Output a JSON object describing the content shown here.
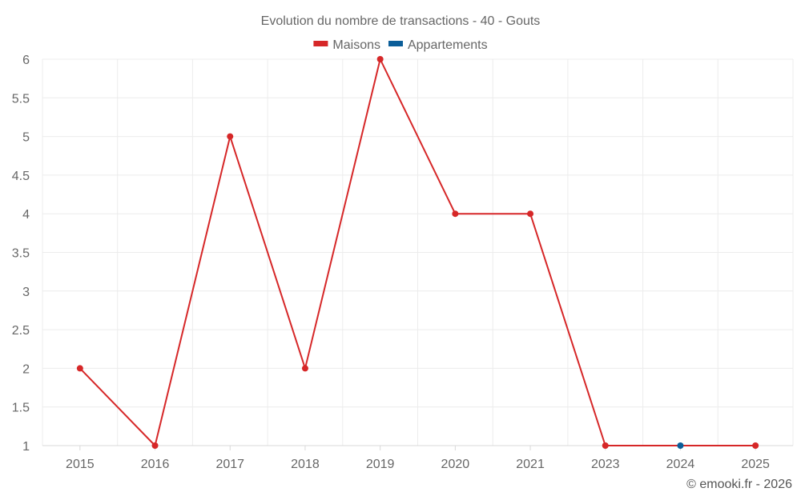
{
  "chart_data": {
    "type": "line",
    "title": "Evolution du nombre de transactions - 40 - Gouts",
    "categories": [
      "2015",
      "2016",
      "2017",
      "2018",
      "2019",
      "2020",
      "2021",
      "2023",
      "2024",
      "2025"
    ],
    "series": [
      {
        "name": "Maisons",
        "color": "#d62728",
        "values": [
          2,
          1,
          5,
          2,
          6,
          4,
          4,
          1,
          null,
          1
        ]
      },
      {
        "name": "Appartements",
        "color": "#0b5e99",
        "values": [
          null,
          null,
          null,
          null,
          null,
          null,
          null,
          null,
          1,
          null
        ]
      }
    ],
    "ylim": [
      1,
      6
    ],
    "yticks": [
      "1",
      "1.5",
      "2",
      "2.5",
      "3",
      "3.5",
      "4",
      "4.5",
      "5",
      "5.5",
      "6"
    ],
    "grid": true,
    "legend_position": "top-center",
    "xlabel": "",
    "ylabel": ""
  },
  "credit": "© emooki.fr - 2026"
}
